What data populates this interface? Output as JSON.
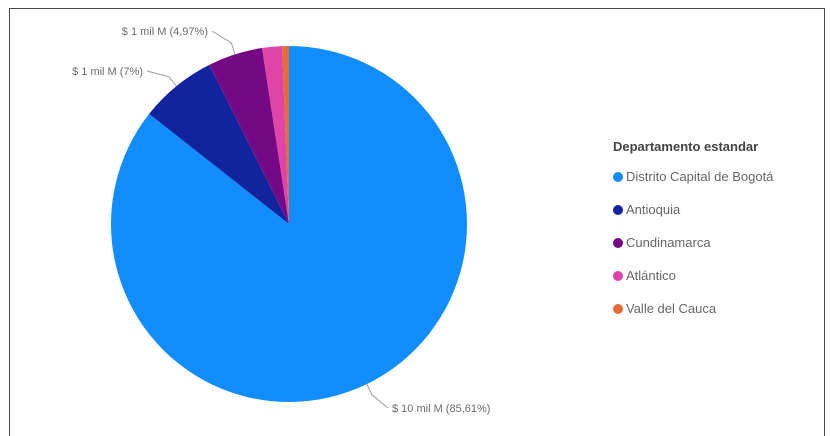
{
  "chart_data": {
    "type": "pie",
    "legend_title": "Departamento estandar",
    "legend_position": "right",
    "slices": [
      {
        "name": "Distrito Capital de Bogotá",
        "value": 85.61,
        "label": "$ 10 mil M (85,61%)",
        "color": "#118DFF"
      },
      {
        "name": "Antioquia",
        "value": 7.0,
        "label": "$ 1 mil M (7%)",
        "color": "#12239E"
      },
      {
        "name": "Cundinamarca",
        "value": 4.97,
        "label": "$ 1 mil M (4,97%)",
        "color": "#750985"
      },
      {
        "name": "Atlántico",
        "value": 1.8,
        "label": "",
        "color": "#E044A7"
      },
      {
        "name": "Valle del Cauca",
        "value": 0.62,
        "label": "",
        "color": "#E66C37"
      }
    ]
  }
}
